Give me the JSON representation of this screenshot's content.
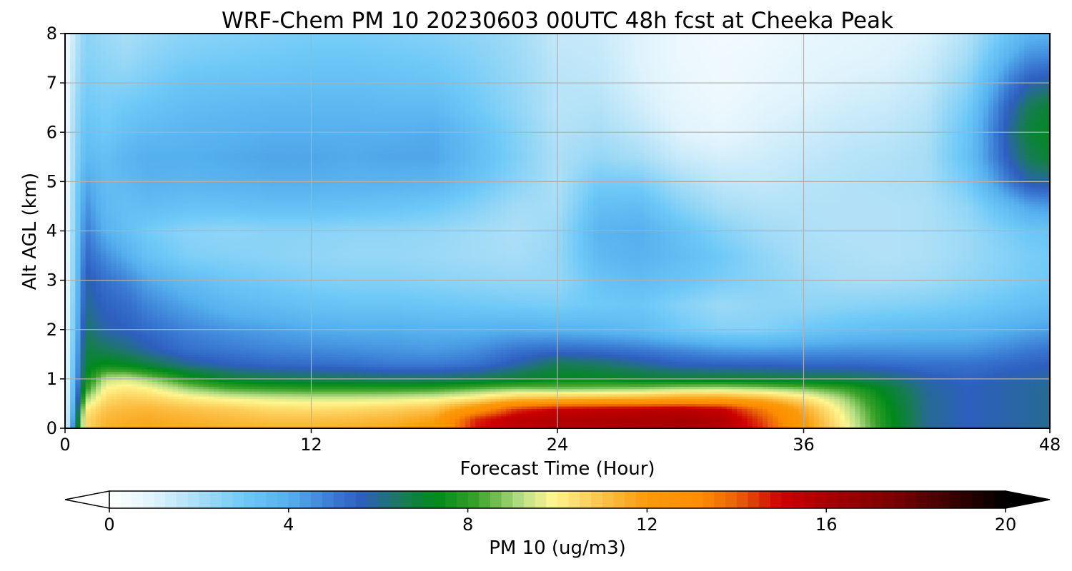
{
  "chart_data": {
    "type": "heatmap",
    "title": "WRF-Chem PM 10  20230603 00UTC 48h fcst at Cheeka Peak",
    "xlabel": "Forecast Time (Hour)",
    "ylabel": "Alt AGL (km)",
    "xlim": [
      0,
      48
    ],
    "ylim": [
      0,
      8
    ],
    "xticks": [
      0,
      12,
      24,
      36,
      48
    ],
    "yticks": [
      0,
      1,
      2,
      3,
      4,
      5,
      6,
      7,
      8
    ],
    "grid": true,
    "colorbar": {
      "label": "PM 10  (ug/m3)",
      "min": 0,
      "max": 20,
      "ticks": [
        0,
        4,
        8,
        12,
        16,
        20
      ],
      "extend": "both",
      "orientation": "horizontal",
      "colormap": [
        [
          0,
          "#ffffff"
        ],
        [
          1,
          "#dff3fc"
        ],
        [
          2,
          "#a7ddf6"
        ],
        [
          3,
          "#6ec9f7"
        ],
        [
          4,
          "#55b0ee"
        ],
        [
          5,
          "#3a7ad3"
        ],
        [
          5.6,
          "#2e5fbf"
        ],
        [
          6.5,
          "#1a7a5a"
        ],
        [
          7.3,
          "#008a1a"
        ],
        [
          8.2,
          "#3aa22a"
        ],
        [
          9.2,
          "#b9df86"
        ],
        [
          9.9,
          "#fff68e"
        ],
        [
          11,
          "#fbc34a"
        ],
        [
          12,
          "#fa9a0a"
        ],
        [
          13.2,
          "#ff8c00"
        ],
        [
          14,
          "#e8620a"
        ],
        [
          15,
          "#cc0000"
        ],
        [
          16,
          "#a80000"
        ],
        [
          17.5,
          "#7a0000"
        ],
        [
          19,
          "#300000"
        ],
        [
          20,
          "#000000"
        ]
      ]
    },
    "x_hours": [
      0,
      0.5,
      1,
      2,
      3,
      4,
      6,
      8,
      10,
      12,
      14,
      16,
      18,
      20,
      22,
      24,
      26,
      28,
      30,
      32,
      34,
      36,
      38,
      40,
      42,
      44,
      46,
      47,
      48
    ],
    "z_km": [
      0,
      0.2,
      0.4,
      0.6,
      0.8,
      1.0,
      1.3,
      1.6,
      2.0,
      2.5,
      3.0,
      3.5,
      4.0,
      4.5,
      5.0,
      5.5,
      6.0,
      6.5,
      7.0,
      7.5,
      8.0
    ],
    "pm10_profiles": [
      [
        0.3,
        0.3,
        0.3,
        0.3,
        0.3,
        0.3,
        0.3,
        0.3,
        0.3,
        0.3,
        0.3,
        0.3,
        0.3,
        0.3,
        0.3,
        0.3,
        0.3,
        0.3,
        0.3,
        0.3,
        0.3
      ],
      [
        6.0,
        5.5,
        5.0,
        4.6,
        4.3,
        4.0,
        3.8,
        3.6,
        3.4,
        3.2,
        3.0,
        2.9,
        2.7,
        2.6,
        2.5,
        2.4,
        2.3,
        2.2,
        2.0,
        1.8,
        1.6
      ],
      [
        10.5,
        10.5,
        10.0,
        9.0,
        8.0,
        7.4,
        7.0,
        6.8,
        6.4,
        6.0,
        5.8,
        5.4,
        5.0,
        4.6,
        4.2,
        3.6,
        3.3,
        3.0,
        2.8,
        2.6,
        2.5
      ],
      [
        11.5,
        11.3,
        11.0,
        10.5,
        10.0,
        9.3,
        7.4,
        6.5,
        5.8,
        5.5,
        5.2,
        4.6,
        3.9,
        3.6,
        3.5,
        3.4,
        3.0,
        2.8,
        2.6,
        2.4,
        2.2
      ],
      [
        11.6,
        11.5,
        11.2,
        10.8,
        10.2,
        9.5,
        7.2,
        6.2,
        5.6,
        5.3,
        4.8,
        4.0,
        3.4,
        3.4,
        3.6,
        3.8,
        3.4,
        3.0,
        2.6,
        2.2,
        2.0
      ],
      [
        11.7,
        11.6,
        11.3,
        10.7,
        10.0,
        9.0,
        6.8,
        5.8,
        5.3,
        4.8,
        4.2,
        3.3,
        2.9,
        3.5,
        3.9,
        4.0,
        3.6,
        3.2,
        2.8,
        2.5,
        2.2
      ],
      [
        11.6,
        11.4,
        11.0,
        10.2,
        9.0,
        7.8,
        6.0,
        5.2,
        4.8,
        4.2,
        3.5,
        2.7,
        2.5,
        3.3,
        3.8,
        4.0,
        3.8,
        3.5,
        3.2,
        2.8,
        2.5
      ],
      [
        11.5,
        11.2,
        10.8,
        9.8,
        8.4,
        7.0,
        5.6,
        5.0,
        4.5,
        3.7,
        3.1,
        2.6,
        2.4,
        3.3,
        3.9,
        4.1,
        3.9,
        3.6,
        3.3,
        2.9,
        2.6
      ],
      [
        11.4,
        11.0,
        10.5,
        9.6,
        8.2,
        6.7,
        5.4,
        4.8,
        4.3,
        3.5,
        2.9,
        2.5,
        2.5,
        3.4,
        4.0,
        4.2,
        4.0,
        3.7,
        3.3,
        3.0,
        2.7
      ],
      [
        11.4,
        11.0,
        10.4,
        9.5,
        8.1,
        6.6,
        5.3,
        4.7,
        4.1,
        3.3,
        2.7,
        2.4,
        2.5,
        3.4,
        4.0,
        4.2,
        4.0,
        3.7,
        3.4,
        3.1,
        2.8
      ],
      [
        11.5,
        11.1,
        10.5,
        9.5,
        8.1,
        6.5,
        5.2,
        4.6,
        4.0,
        3.2,
        2.6,
        2.3,
        2.4,
        3.3,
        3.9,
        4.1,
        4.0,
        3.7,
        3.4,
        3.1,
        2.8
      ],
      [
        11.7,
        11.3,
        10.7,
        9.6,
        8.1,
        6.4,
        5.0,
        4.5,
        4.0,
        3.2,
        2.6,
        2.3,
        2.4,
        3.2,
        3.9,
        4.2,
        4.0,
        3.6,
        3.3,
        3.0,
        2.7
      ],
      [
        12.2,
        11.8,
        11.0,
        9.8,
        8.2,
        6.4,
        5.0,
        4.4,
        3.9,
        3.1,
        2.5,
        2.2,
        2.3,
        3.0,
        3.8,
        4.2,
        4.1,
        3.6,
        3.2,
        2.9,
        2.6
      ],
      [
        14.8,
        14.5,
        12.5,
        10.3,
        8.6,
        6.6,
        5.2,
        4.6,
        3.9,
        3.0,
        2.4,
        2.1,
        2.1,
        2.6,
        3.2,
        3.5,
        3.4,
        3.0,
        2.8,
        2.6,
        2.4
      ],
      [
        15.6,
        15.4,
        14.4,
        11.2,
        8.9,
        7.0,
        5.8,
        5.1,
        4.0,
        2.9,
        2.3,
        2.0,
        1.9,
        2.1,
        2.5,
        2.7,
        2.6,
        2.4,
        2.3,
        2.2,
        2.1
      ],
      [
        15.9,
        15.7,
        15.0,
        11.4,
        8.8,
        7.3,
        6.6,
        5.3,
        3.9,
        2.8,
        2.3,
        2.3,
        2.2,
        2.0,
        1.9,
        1.9,
        1.8,
        1.7,
        1.7,
        1.6,
        1.5
      ],
      [
        16.0,
        15.8,
        15.2,
        11.5,
        8.9,
        7.3,
        6.4,
        5.2,
        3.8,
        3.0,
        3.2,
        3.6,
        3.8,
        3.4,
        2.9,
        2.3,
        2.0,
        1.8,
        1.6,
        1.5,
        1.4
      ],
      [
        16.1,
        15.9,
        15.3,
        11.7,
        9.0,
        7.1,
        6.0,
        5.0,
        3.6,
        3.1,
        3.5,
        3.9,
        4.0,
        3.5,
        2.8,
        2.0,
        1.6,
        1.3,
        1.1,
        1.0,
        1.0
      ],
      [
        16.2,
        16.0,
        15.4,
        12.0,
        9.3,
        7.0,
        5.6,
        4.7,
        3.0,
        2.6,
        3.2,
        3.5,
        3.3,
        2.6,
        2.0,
        1.4,
        1.0,
        0.8,
        0.7,
        0.6,
        0.6
      ],
      [
        15.9,
        15.7,
        15.1,
        12.0,
        9.4,
        7.0,
        5.5,
        4.4,
        2.6,
        2.2,
        2.8,
        3.0,
        2.6,
        2.0,
        1.6,
        1.2,
        0.8,
        0.6,
        0.5,
        0.5,
        0.4
      ],
      [
        14.5,
        14.2,
        13.5,
        11.4,
        9.2,
        6.9,
        5.5,
        4.3,
        2.6,
        2.4,
        2.5,
        2.4,
        2.1,
        1.8,
        1.5,
        1.3,
        1.1,
        0.9,
        0.7,
        0.6,
        0.5
      ],
      [
        12.2,
        12.0,
        11.5,
        10.4,
        8.8,
        6.8,
        5.4,
        4.4,
        3.0,
        2.4,
        2.2,
        2.0,
        1.9,
        1.8,
        1.7,
        1.5,
        1.3,
        1.1,
        0.9,
        0.8,
        0.7
      ],
      [
        10.0,
        9.8,
        9.5,
        9.0,
        8.2,
        6.7,
        5.4,
        4.5,
        3.3,
        2.5,
        2.0,
        1.9,
        1.8,
        1.8,
        1.8,
        1.7,
        1.5,
        1.3,
        1.1,
        0.9,
        0.8
      ],
      [
        7.7,
        7.6,
        7.5,
        7.3,
        7.1,
        6.4,
        5.3,
        4.5,
        3.5,
        2.6,
        2.0,
        1.8,
        1.8,
        1.8,
        1.9,
        1.8,
        1.6,
        1.4,
        1.2,
        1.0,
        0.9
      ],
      [
        6.0,
        6.0,
        6.0,
        6.0,
        5.9,
        5.8,
        5.2,
        4.5,
        3.6,
        2.7,
        2.1,
        1.9,
        1.9,
        1.9,
        2.0,
        2.0,
        1.9,
        1.7,
        1.5,
        1.3,
        1.1
      ],
      [
        5.6,
        5.6,
        5.6,
        5.6,
        5.6,
        5.5,
        5.2,
        4.5,
        3.7,
        2.9,
        2.4,
        2.2,
        2.2,
        2.4,
        2.9,
        3.3,
        3.2,
        2.9,
        2.5,
        2.1,
        1.8
      ],
      [
        5.8,
        5.8,
        5.8,
        5.8,
        5.8,
        5.8,
        5.4,
        4.8,
        4.0,
        3.2,
        2.7,
        2.6,
        2.8,
        3.6,
        5.0,
        5.7,
        5.9,
        5.6,
        4.9,
        4.0,
        3.2
      ],
      [
        5.9,
        5.9,
        5.9,
        5.9,
        5.9,
        5.8,
        5.5,
        5.0,
        4.2,
        3.4,
        2.9,
        2.8,
        3.1,
        4.2,
        5.8,
        6.6,
        6.9,
        6.6,
        5.7,
        4.7,
        3.8
      ],
      [
        6.0,
        6.0,
        6.0,
        6.0,
        6.0,
        5.9,
        5.6,
        5.1,
        4.3,
        3.5,
        3.0,
        2.9,
        3.2,
        4.4,
        5.9,
        7.0,
        7.2,
        7.0,
        6.0,
        4.8,
        3.9
      ]
    ]
  }
}
